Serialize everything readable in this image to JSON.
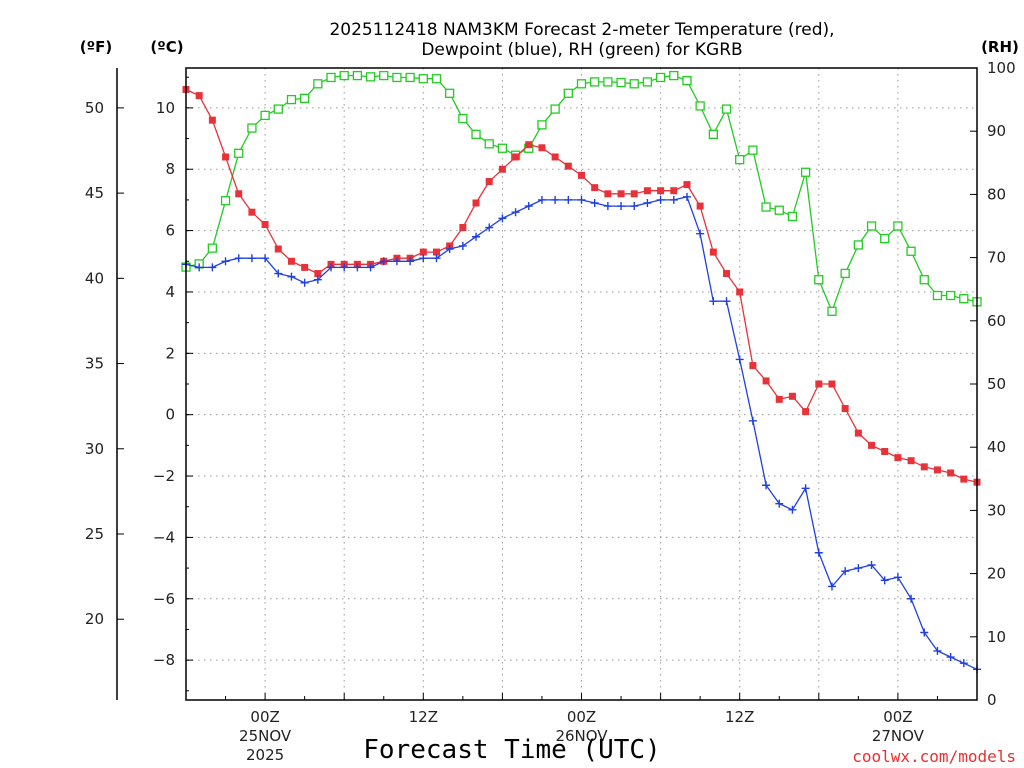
{
  "chart_data": {
    "type": "line",
    "title_line1": "2025112418 NAM3KM Forecast 2-meter Temperature (red),",
    "title_line2": "Dewpoint (blue), RH (green) for KGRB",
    "xlabel": "Forecast Time (UTC)",
    "credit": "coolwx.com/models",
    "units": {
      "fahrenheit": "(ºF)",
      "celsius": "(ºC)",
      "rh": "(RH)"
    },
    "x_range_hours": [
      -6,
      54
    ],
    "ylim_c": [
      -9.3,
      11.3
    ],
    "ylim_rh": [
      0,
      100
    ],
    "ylim_f": [
      15.26,
      52.34
    ],
    "y_ticks_c": [
      "10",
      "8",
      "6",
      "4",
      "2",
      "0",
      "−2",
      "−4",
      "−6",
      "−8"
    ],
    "y_ticks_f": [
      "50",
      "45",
      "40",
      "35",
      "30",
      "25",
      "20"
    ],
    "y_ticks_rh": [
      "100",
      "90",
      "80",
      "70",
      "60",
      "50",
      "40",
      "30",
      "20",
      "10",
      "0"
    ],
    "x_ticks": [
      {
        "label": "00Z",
        "sub1": "25NOV",
        "sub2": "2025"
      },
      {
        "label": "12Z",
        "sub1": "",
        "sub2": ""
      },
      {
        "label": "00Z",
        "sub1": "26NOV",
        "sub2": ""
      },
      {
        "label": "12Z",
        "sub1": "",
        "sub2": ""
      },
      {
        "label": "00Z",
        "sub1": "27NOV",
        "sub2": ""
      }
    ],
    "colors": {
      "temperature": "#e8323a",
      "dewpoint": "#2040e0",
      "rh": "#22cc22",
      "grid": "#999999",
      "credit": "#e83030"
    },
    "series": [
      {
        "name": "Temperature (°C)",
        "axis": "c",
        "marker": "filled-square",
        "values": [
          10.6,
          10.4,
          9.6,
          8.4,
          7.2,
          6.6,
          6.2,
          5.4,
          5.0,
          4.8,
          4.6,
          4.9,
          4.9,
          4.9,
          4.9,
          5.0,
          5.1,
          5.1,
          5.3,
          5.3,
          5.5,
          6.1,
          6.9,
          7.6,
          8.0,
          8.4,
          8.8,
          8.7,
          8.4,
          8.1,
          7.8,
          7.4,
          7.2,
          7.2,
          7.2,
          7.3,
          7.3,
          7.3,
          7.5,
          6.8,
          5.3,
          4.6,
          4.0,
          1.6,
          1.1,
          0.5,
          0.6,
          0.1,
          1.0,
          1.0,
          0.2,
          -0.6,
          -1.0,
          -1.2,
          -1.4,
          -1.5,
          -1.7,
          -1.8,
          -1.9,
          -2.1,
          -2.2
        ]
      },
      {
        "name": "Dewpoint (°C)",
        "axis": "c",
        "marker": "plus",
        "values": [
          4.9,
          4.8,
          4.8,
          5.0,
          5.1,
          5.1,
          5.1,
          4.6,
          4.5,
          4.3,
          4.4,
          4.8,
          4.8,
          4.8,
          4.8,
          5.0,
          5.0,
          5.0,
          5.1,
          5.1,
          5.4,
          5.5,
          5.8,
          6.1,
          6.4,
          6.6,
          6.8,
          7.0,
          7.0,
          7.0,
          7.0,
          6.9,
          6.8,
          6.8,
          6.8,
          6.9,
          7.0,
          7.0,
          7.1,
          5.9,
          3.7,
          3.7,
          1.8,
          -0.2,
          -2.3,
          -2.9,
          -3.1,
          -2.4,
          -4.5,
          -5.6,
          -5.1,
          -5.0,
          -4.9,
          -5.4,
          -5.3,
          -6.0,
          -7.1,
          -7.7,
          -7.9,
          -8.1,
          -8.3
        ]
      },
      {
        "name": "RH (%)",
        "axis": "rh",
        "marker": "open-square",
        "values": [
          68.5,
          69,
          71.5,
          79,
          86.5,
          90.5,
          92.5,
          93.5,
          95,
          95.2,
          97.5,
          98.5,
          98.8,
          98.8,
          98.6,
          98.8,
          98.5,
          98.5,
          98.3,
          98.3,
          96,
          92,
          89.5,
          88,
          87.3,
          86.2,
          87.3,
          91,
          93.5,
          96,
          97.5,
          97.8,
          97.8,
          97.7,
          97.5,
          97.8,
          98.5,
          98.8,
          98,
          94,
          89.5,
          93.5,
          85.5,
          87,
          78,
          77.5,
          76.5,
          83.5,
          66.5,
          61.5,
          67.5,
          72,
          75,
          73,
          75,
          71,
          66.5,
          64,
          64,
          63.5,
          63
        ]
      }
    ]
  }
}
